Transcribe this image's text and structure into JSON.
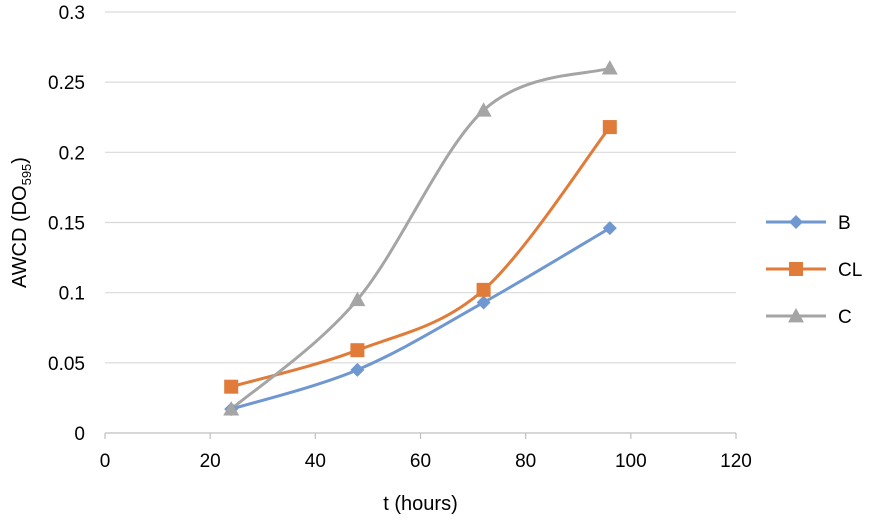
{
  "chart_data": {
    "type": "line",
    "title": "",
    "xlabel": "t (hours)",
    "ylabel": {
      "main": "AWCD (DO",
      "subscript": "595",
      "close": ")"
    },
    "xlim": [
      0,
      120
    ],
    "ylim": [
      0,
      0.3
    ],
    "x_ticks": [
      "0",
      "20",
      "40",
      "60",
      "80",
      "100",
      "120"
    ],
    "y_ticks": [
      "0",
      "0.05",
      "0.1",
      "0.15",
      "0.2",
      "0.25",
      "0.3"
    ],
    "grid": "horizontal",
    "smooth": true,
    "legend_position": "right",
    "series": [
      {
        "name": "B",
        "color": "#6f97d0",
        "marker": "diamond",
        "x": [
          24,
          48,
          72,
          96
        ],
        "y": [
          0.017,
          0.045,
          0.093,
          0.146
        ]
      },
      {
        "name": "CL",
        "color": "#e07b39",
        "marker": "square",
        "x": [
          24,
          48,
          72,
          96
        ],
        "y": [
          0.033,
          0.059,
          0.102,
          0.218
        ]
      },
      {
        "name": "C",
        "color": "#a5a5a5",
        "marker": "triangle",
        "x": [
          24,
          48,
          72,
          96
        ],
        "y": [
          0.017,
          0.095,
          0.23,
          0.26
        ]
      }
    ]
  }
}
